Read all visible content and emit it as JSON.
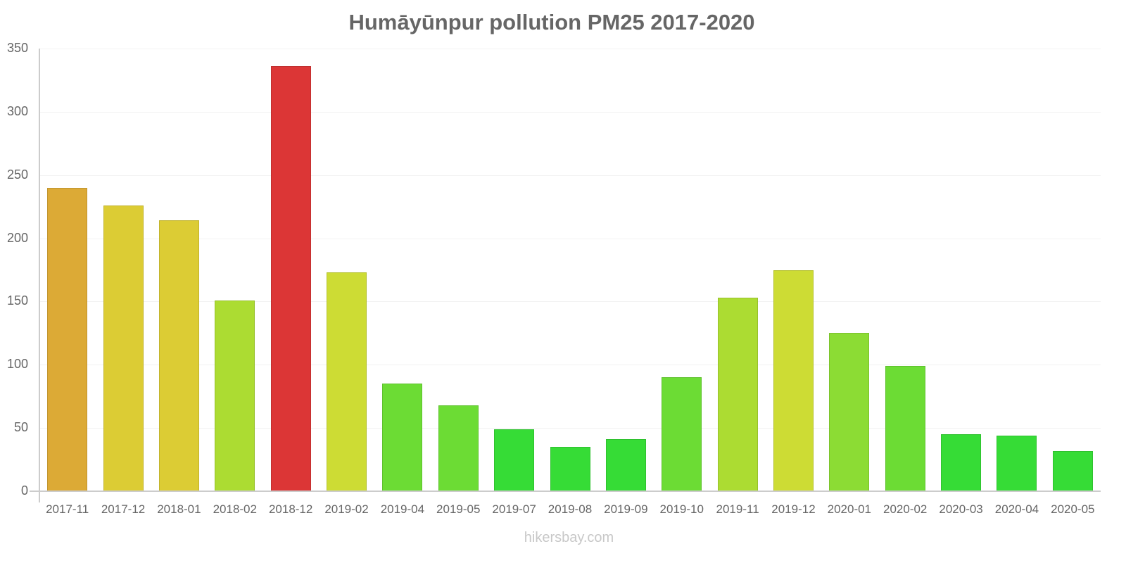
{
  "chart_data": {
    "type": "bar",
    "title": "Humāyūnpur pollution PM25 2017-2020",
    "xlabel": "",
    "ylabel": "",
    "ylim": [
      0,
      350
    ],
    "yticks": [
      0,
      50,
      100,
      150,
      200,
      250,
      300,
      350
    ],
    "grid": true,
    "legend": null,
    "categories": [
      "2017-11",
      "2017-12",
      "2018-01",
      "2018-02",
      "2018-12",
      "2019-02",
      "2019-04",
      "2019-05",
      "2019-07",
      "2019-08",
      "2019-09",
      "2019-10",
      "2019-11",
      "2019-12",
      "2020-01",
      "2020-02",
      "2020-03",
      "2020-04",
      "2020-05"
    ],
    "values": [
      240,
      226,
      214,
      151,
      336,
      173,
      85,
      68,
      49,
      35,
      41,
      90,
      153,
      175,
      125,
      99,
      45,
      44,
      32
    ],
    "colors": [
      "#dcaa36",
      "#dccc34",
      "#dccc34",
      "#acdc32",
      "#dc3636",
      "#cddc34",
      "#6cdc34",
      "#6cdc34",
      "#36dc36",
      "#36dc36",
      "#36dc36",
      "#6cdc34",
      "#acdc32",
      "#cddc34",
      "#8cdc34",
      "#6cdc34",
      "#36dc36",
      "#36dc36",
      "#36dc36"
    ]
  },
  "credit": "hikersbay.com"
}
